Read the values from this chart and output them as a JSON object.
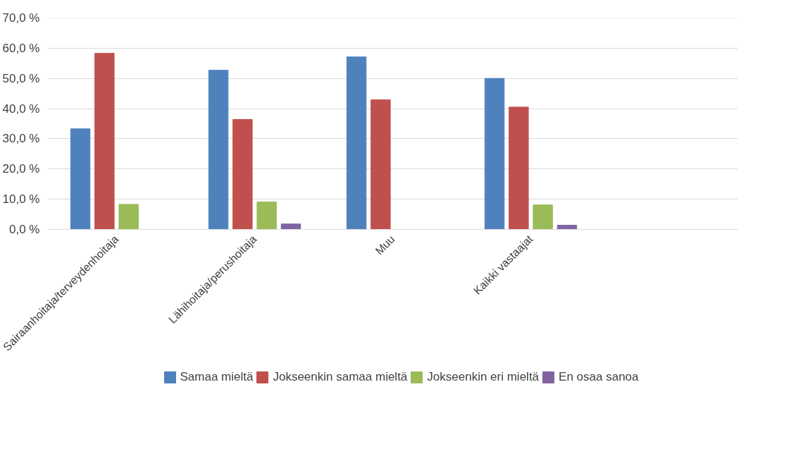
{
  "chart_data": {
    "type": "bar",
    "categories": [
      "Sairaanhoitaja/terveydenhoitaja",
      "Lähihoitaja/perushoitaja",
      "Muu",
      "Kaikki vastaajat",
      null
    ],
    "series": [
      {
        "name": "Samaa mieltä",
        "color": "#4f81bd",
        "values": [
          33.3,
          52.7,
          57.1,
          50.0,
          null
        ]
      },
      {
        "name": "Jokseenkin samaa mieltä",
        "color": "#c0504d",
        "values": [
          58.3,
          36.4,
          42.9,
          40.5,
          null
        ]
      },
      {
        "name": "Jokseenkin eri mieltä",
        "color": "#9bbb59",
        "values": [
          8.3,
          9.1,
          0,
          8.1,
          null
        ]
      },
      {
        "name": "En osaa sanoa",
        "color": "#8064a2",
        "values": [
          0,
          1.8,
          0,
          1.4,
          null
        ]
      }
    ],
    "ylim": [
      0,
      70
    ],
    "yticks": [
      {
        "value": 0,
        "label": "0,0 %"
      },
      {
        "value": 10,
        "label": "10,0 %"
      },
      {
        "value": 20,
        "label": "20,0 %"
      },
      {
        "value": 30,
        "label": "30,0 %"
      },
      {
        "value": 40,
        "label": "40,0 %"
      },
      {
        "value": 50,
        "label": "50,0 %"
      },
      {
        "value": 60,
        "label": "60,0 %"
      },
      {
        "value": 70,
        "label": "70,0 %"
      }
    ],
    "grid": "y",
    "legend": "bottom"
  }
}
